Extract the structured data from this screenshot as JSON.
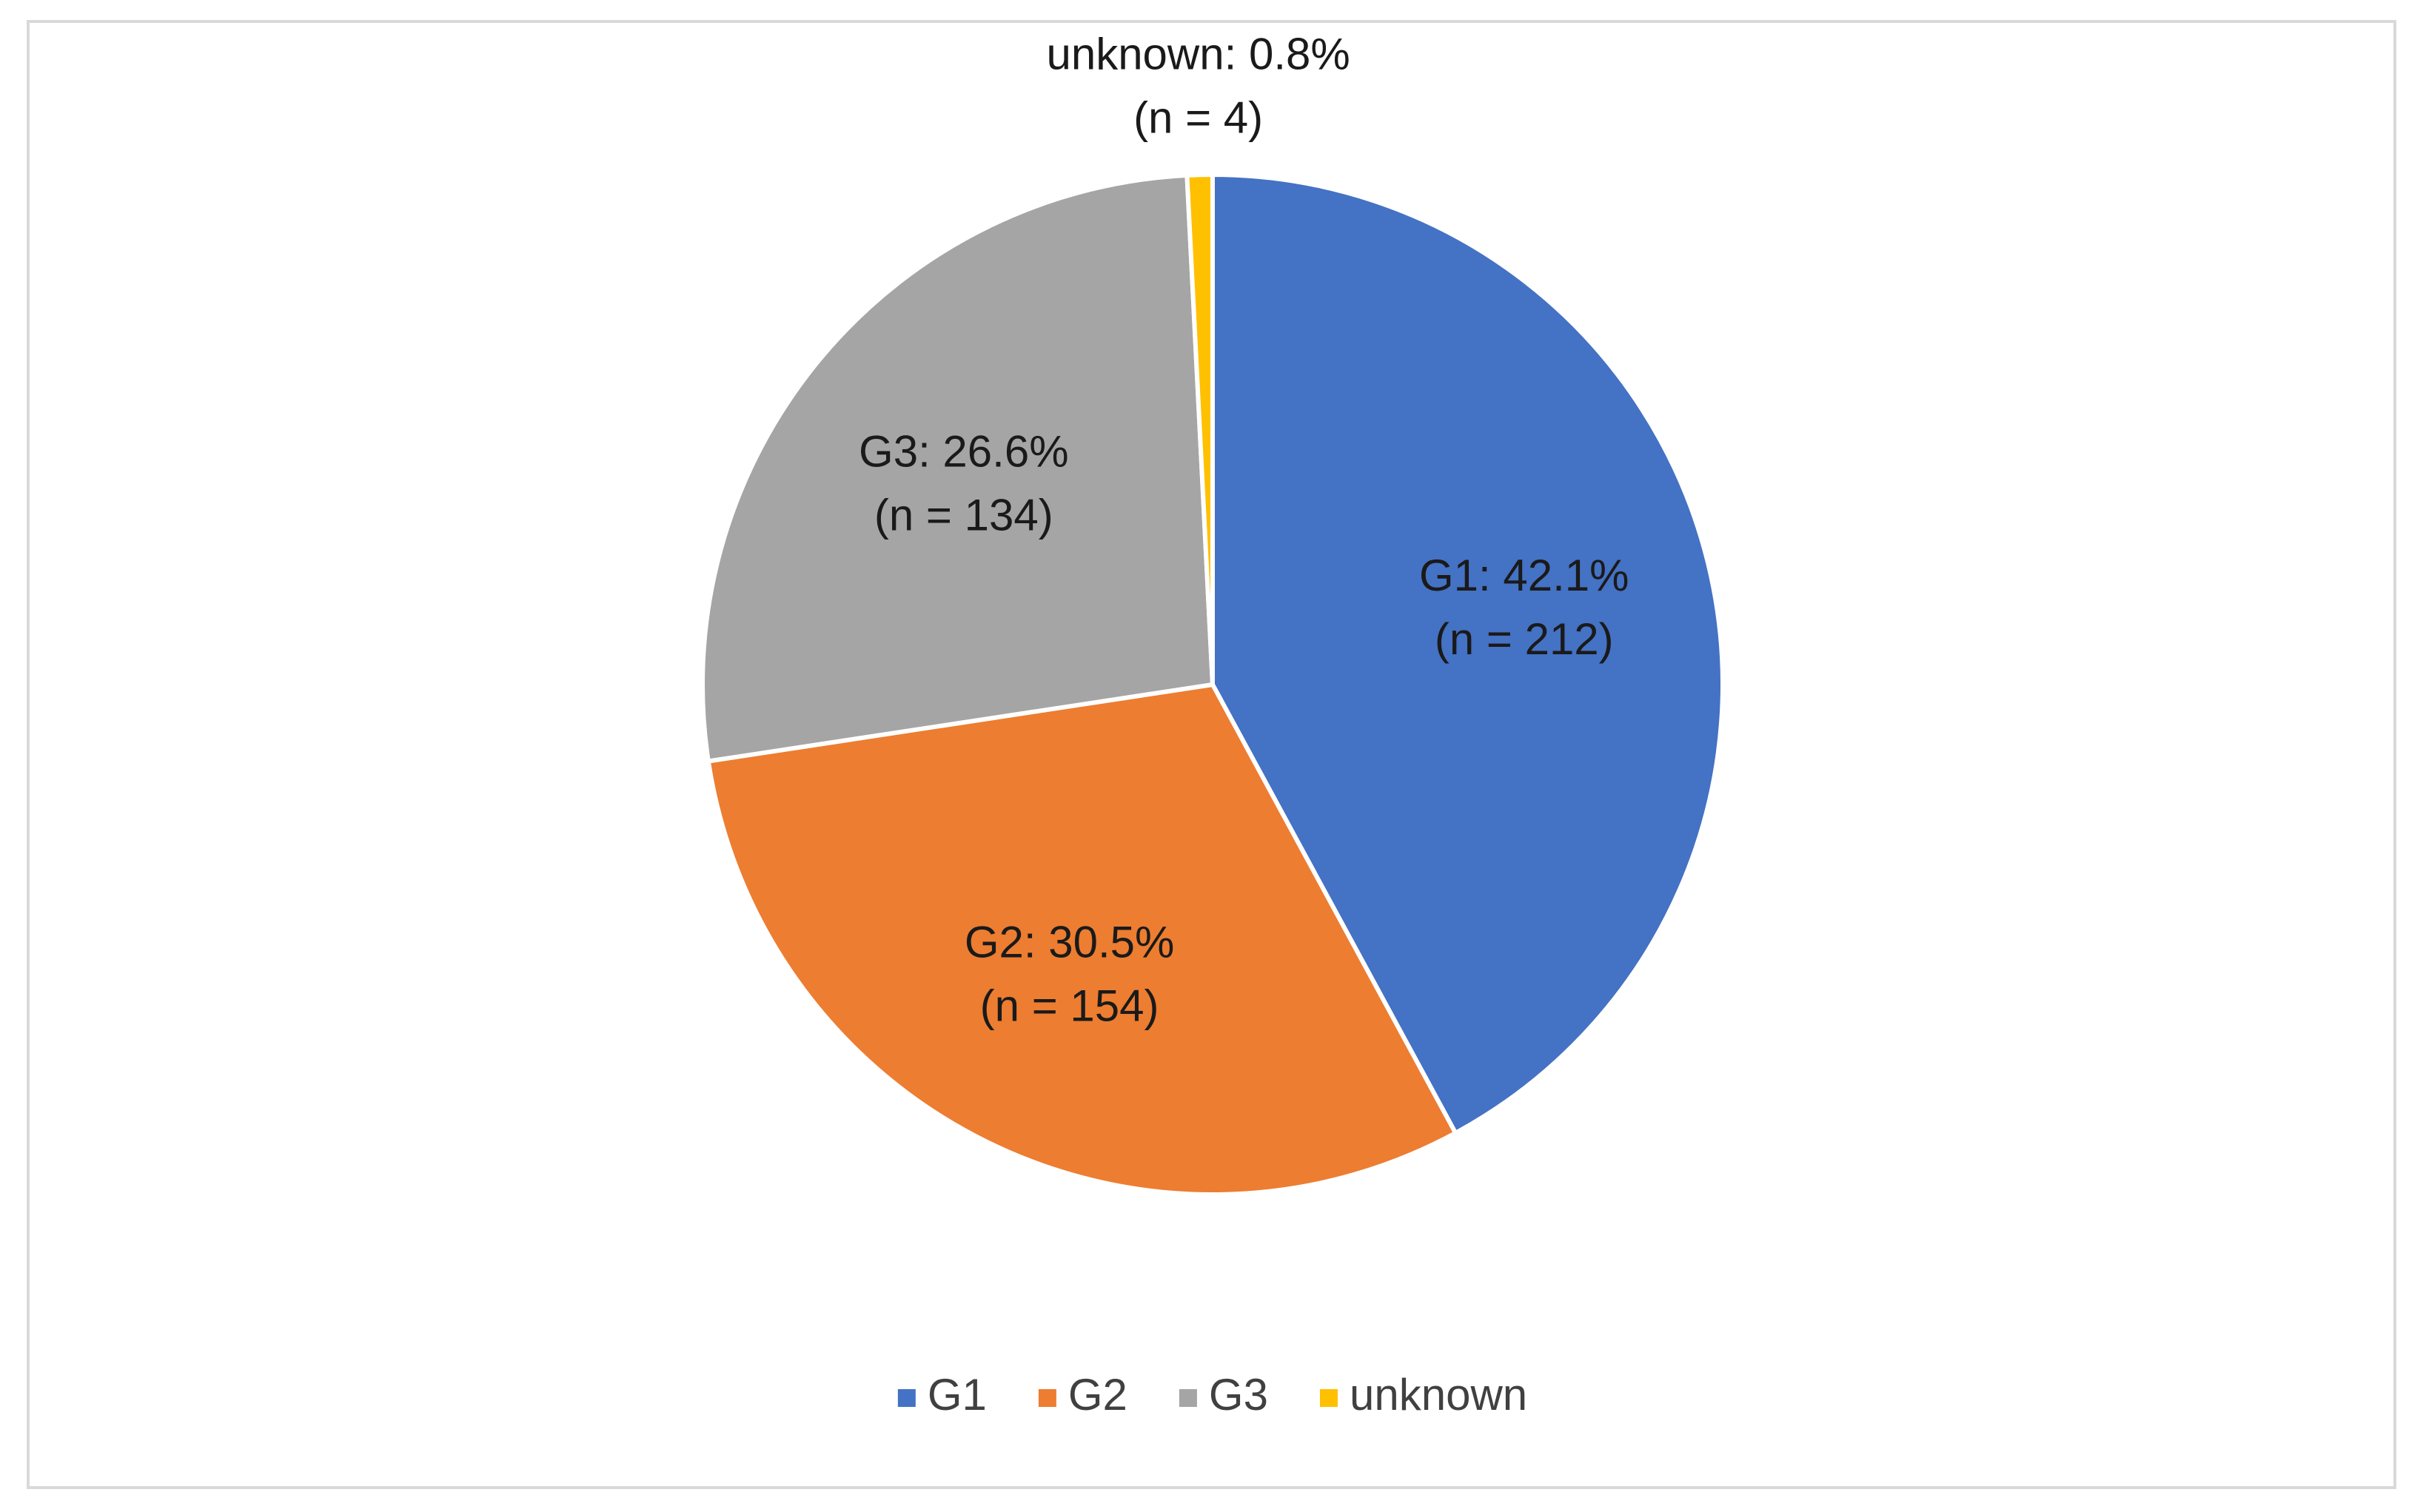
{
  "chart_data": {
    "type": "pie",
    "categories": [
      "G1",
      "G2",
      "G3",
      "unknown"
    ],
    "values": [
      42.1,
      30.5,
      26.6,
      0.8
    ],
    "value_labels": [
      "G1: 42.1%",
      "G2: 30.5%",
      "G3: 26.6%",
      "unknown: 0.8%"
    ],
    "n_labels": [
      "(n = 212)",
      "(n = 154)",
      "(n = 134)",
      "(n  = 4)"
    ],
    "colors": [
      "#4472c4",
      "#ed7d31",
      "#a5a5a5",
      "#ffc000"
    ],
    "legend": "bottom"
  }
}
